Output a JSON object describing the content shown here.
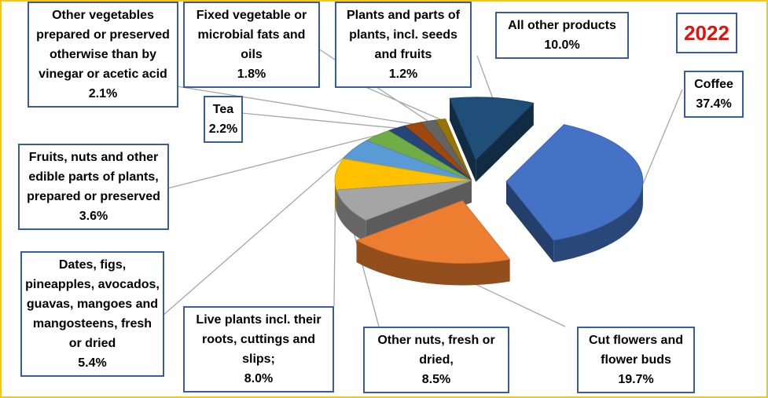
{
  "chart_data": {
    "type": "pie",
    "year_label": "2022",
    "slices": [
      {
        "label": "Coffee",
        "value_text": "37.4%",
        "value": 37.4,
        "color": "#4472c4",
        "exploded": true
      },
      {
        "label": "Cut flowers and flower buds",
        "value_text": "19.7%",
        "value": 19.7,
        "color": "#ed7d31",
        "exploded": true
      },
      {
        "label": "Other nuts, fresh or dried,",
        "value_text": "8.5%",
        "value": 8.5,
        "color": "#a5a5a5",
        "exploded": false
      },
      {
        "label": "Live plants incl. their roots, cuttings and slips;",
        "value_text": "8.0%",
        "value": 8.0,
        "color": "#ffc000",
        "exploded": false
      },
      {
        "label": "Dates, figs, pineapples, avocados, guavas, mangoes and mangosteens, fresh or dried",
        "value_text": "5.4%",
        "value": 5.4,
        "color": "#5b9bd5",
        "exploded": false
      },
      {
        "label": "Fruits, nuts and other edible parts of plants, prepared or preserved",
        "value_text": "3.6%",
        "value": 3.6,
        "color": "#70ad47",
        "exploded": false
      },
      {
        "label": "Tea",
        "value_text": "2.2%",
        "value": 2.2,
        "color": "#264478",
        "exploded": false
      },
      {
        "label": "Other vegetables prepared or preserved otherwise than by vinegar or acetic acid",
        "value_text": "2.1%",
        "value": 2.1,
        "color": "#9e480e",
        "exploded": false
      },
      {
        "label": "Fixed vegetable or microbial fats and oils",
        "value_text": "1.8%",
        "value": 1.8,
        "color": "#636363",
        "exploded": false
      },
      {
        "label": "Plants and parts of plants, incl. seeds and fruits",
        "value_text": "1.2%",
        "value": 1.2,
        "color": "#997300",
        "exploded": false
      },
      {
        "label": "All other products",
        "value_text": "10.0%",
        "value": 10.0,
        "color": "#1f4e79",
        "exploded": true
      }
    ]
  }
}
